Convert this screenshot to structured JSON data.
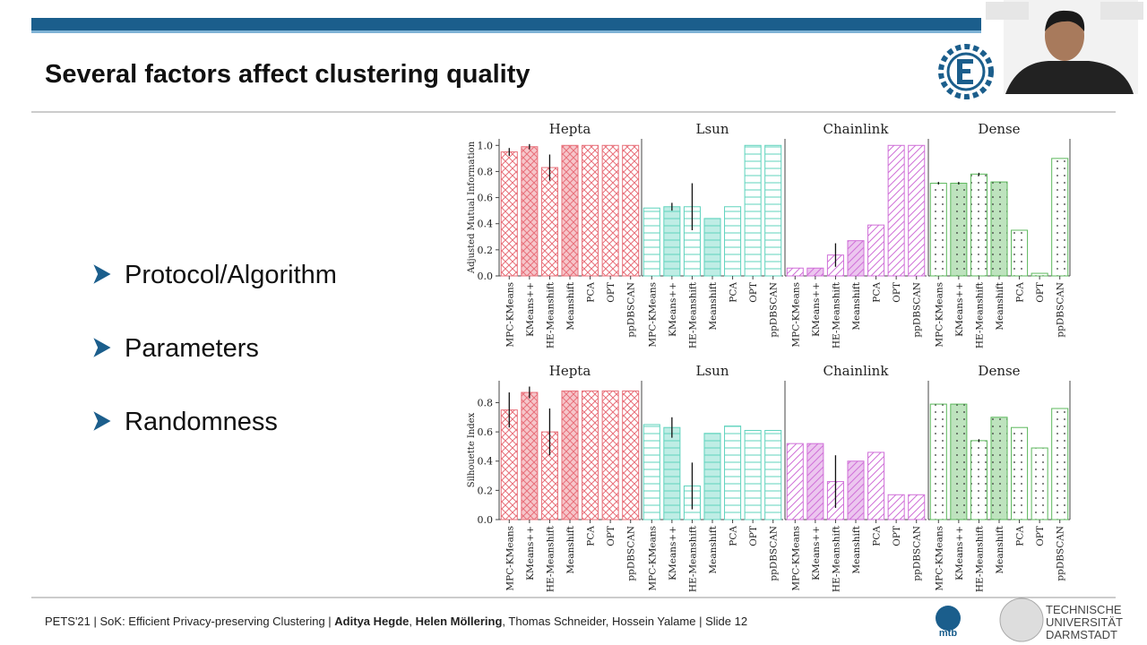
{
  "header": {
    "title": "Several factors affect clustering quality"
  },
  "bullets": [
    "Protocol/Algorithm",
    "Parameters",
    "Randomness"
  ],
  "footer": {
    "parts": [
      "PETS'21 | SoK: Efficient Privacy-preserving Clustering | ",
      "Aditya Hegde",
      ", ",
      "Helen Möllering",
      ", Thomas Schneider, Hossein Yalame | Slide 12"
    ],
    "logo_text": [
      "TECHNISCHE",
      "UNIVERSITÄT",
      "DARMSTADT"
    ]
  },
  "chart_data": [
    {
      "type": "bar",
      "title": "Hepta",
      "ylabel": "Adjusted Mutual Information",
      "categories": [
        "MPC-KMeans",
        "KMeans++",
        "HE-Meanshift",
        "Meanshift",
        "PCA",
        "OPT",
        "ppDBSCAN"
      ],
      "values": [
        0.95,
        0.99,
        0.83,
        1.0,
        1.0,
        1.0,
        1.0
      ],
      "errors": [
        0.03,
        0.02,
        0.1,
        null,
        null,
        null,
        null
      ],
      "color": "#e8707a",
      "hatch": "cross",
      "ylim": [
        0,
        1.05
      ],
      "yticks": [
        {
          "value": 0,
          "label": "0.0"
        },
        0.2,
        0.4,
        0.6,
        0.8,
        {
          "value": 1,
          "label": "1.0"
        }
      ]
    },
    {
      "type": "bar",
      "title": "Lsun",
      "categories": [
        "MPC-KMeans",
        "KMeans++",
        "HE-Meanshift",
        "Meanshift",
        "PCA",
        "OPT",
        "ppDBSCAN"
      ],
      "values": [
        0.52,
        0.53,
        0.53,
        0.44,
        0.53,
        1.0,
        1.0
      ],
      "errors": [
        null,
        0.03,
        0.18,
        null,
        null,
        null,
        null
      ],
      "color": "#5fd3bd",
      "hatch": "horizontal",
      "ylim": [
        0,
        1.05
      ]
    },
    {
      "type": "bar",
      "title": "Chainlink",
      "categories": [
        "MPC-KMeans",
        "KMeans++",
        "HE-Meanshift",
        "Meanshift",
        "PCA",
        "OPT",
        "ppDBSCAN"
      ],
      "values": [
        0.06,
        0.06,
        0.16,
        0.27,
        0.39,
        1.0,
        1.0
      ],
      "errors": [
        null,
        null,
        0.09,
        null,
        null,
        null,
        null
      ],
      "color": "#d070d8",
      "hatch": "diagonal",
      "ylim": [
        0,
        1.05
      ]
    },
    {
      "type": "bar",
      "title": "Dense",
      "categories": [
        "MPC-KMeans",
        "KMeans++",
        "HE-Meanshift",
        "Meanshift",
        "PCA",
        "OPT",
        "ppDBSCAN"
      ],
      "values": [
        0.71,
        0.71,
        0.78,
        0.72,
        0.35,
        0.02,
        0.9
      ],
      "errors": [
        0.01,
        0.01,
        0.01,
        null,
        null,
        null,
        null
      ],
      "color": "#5cb85c",
      "hatch": "dots",
      "ylim": [
        0,
        1.05
      ]
    },
    {
      "type": "bar",
      "title": "Hepta",
      "ylabel": "Silhouette Index",
      "categories": [
        "MPC-KMeans",
        "KMeans++",
        "HE-Meanshift",
        "Meanshift",
        "PCA",
        "OPT",
        "ppDBSCAN"
      ],
      "values": [
        0.75,
        0.87,
        0.6,
        0.88,
        0.88,
        0.88,
        0.88
      ],
      "errors": [
        0.12,
        0.04,
        0.16,
        null,
        null,
        null,
        null
      ],
      "color": "#e8707a",
      "hatch": "cross",
      "ylim": [
        0,
        0.95
      ],
      "yticks": [
        {
          "value": 0,
          "label": "0.0"
        },
        0.2,
        0.4,
        0.6,
        0.8
      ]
    },
    {
      "type": "bar",
      "title": "Lsun",
      "categories": [
        "MPC-KMeans",
        "KMeans++",
        "HE-Meanshift",
        "Meanshift",
        "PCA",
        "OPT",
        "ppDBSCAN"
      ],
      "values": [
        0.65,
        0.63,
        0.23,
        0.59,
        0.64,
        0.61,
        0.61
      ],
      "errors": [
        null,
        0.07,
        0.16,
        null,
        null,
        null,
        null
      ],
      "color": "#5fd3bd",
      "hatch": "horizontal",
      "ylim": [
        0,
        0.95
      ]
    },
    {
      "type": "bar",
      "title": "Chainlink",
      "categories": [
        "MPC-KMeans",
        "KMeans++",
        "HE-Meanshift",
        "Meanshift",
        "PCA",
        "OPT",
        "ppDBSCAN"
      ],
      "values": [
        0.52,
        0.52,
        0.26,
        0.4,
        0.46,
        0.17,
        0.17
      ],
      "errors": [
        null,
        null,
        0.18,
        null,
        null,
        null,
        null
      ],
      "color": "#d070d8",
      "hatch": "diagonal",
      "ylim": [
        0,
        0.95
      ]
    },
    {
      "type": "bar",
      "title": "Dense",
      "categories": [
        "MPC-KMeans",
        "KMeans++",
        "HE-Meanshift",
        "Meanshift",
        "PCA",
        "OPT",
        "ppDBSCAN"
      ],
      "values": [
        0.79,
        0.79,
        0.54,
        0.7,
        0.63,
        0.49,
        0.76
      ],
      "errors": [
        null,
        null,
        0.01,
        null,
        null,
        null,
        null
      ],
      "color": "#5cb85c",
      "hatch": "dots",
      "ylim": [
        0,
        0.95
      ]
    }
  ]
}
